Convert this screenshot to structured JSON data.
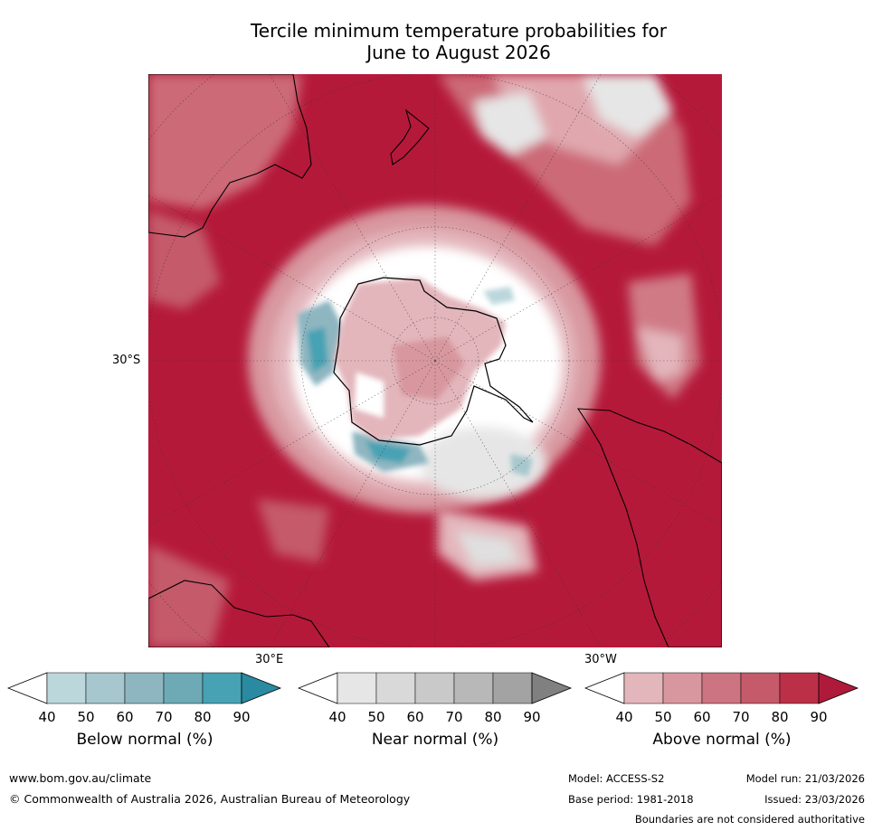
{
  "title": {
    "line1": "Tercile minimum temperature probabilities for",
    "line2": "June to August 2026"
  },
  "map": {
    "projection": "south-polar-stereographic",
    "latitude_label": "30°S",
    "longitude_labels": [
      "30°E",
      "30°W"
    ],
    "background_color": "#b5193a"
  },
  "colorbars": [
    {
      "title": "Below normal (%)",
      "ticks": [
        "40",
        "50",
        "60",
        "70",
        "80",
        "90"
      ],
      "colors": [
        "#ffffff",
        "#bcd7dc",
        "#a6c7cd",
        "#8eb6c1",
        "#6eaab6",
        "#47a2b3",
        "#2a8aa1"
      ]
    },
    {
      "title": "Near normal (%)",
      "ticks": [
        "40",
        "50",
        "60",
        "70",
        "80",
        "90"
      ],
      "colors": [
        "#ffffff",
        "#e6e6e6",
        "#d9d9d9",
        "#c9c9c9",
        "#b8b8b8",
        "#a3a3a3",
        "#808080"
      ]
    },
    {
      "title": "Above normal (%)",
      "ticks": [
        "40",
        "50",
        "60",
        "70",
        "80",
        "90"
      ],
      "colors": [
        "#ffffff",
        "#e3b6bc",
        "#d8979f",
        "#cc7481",
        "#c45a6a",
        "#bb3047",
        "#b01a3a"
      ]
    }
  ],
  "footer": {
    "website": "www.bom.gov.au/climate",
    "copyright": "© Commonwealth of Australia 2026, Australian Bureau of Meteorology",
    "model": "Model: ACCESS-S2",
    "model_run": "Model run: 21/03/2026",
    "base_period": "Base period: 1981-2018",
    "issued": "Issued: 23/03/2026",
    "disclaimer": "Boundaries are not considered authoritative"
  }
}
